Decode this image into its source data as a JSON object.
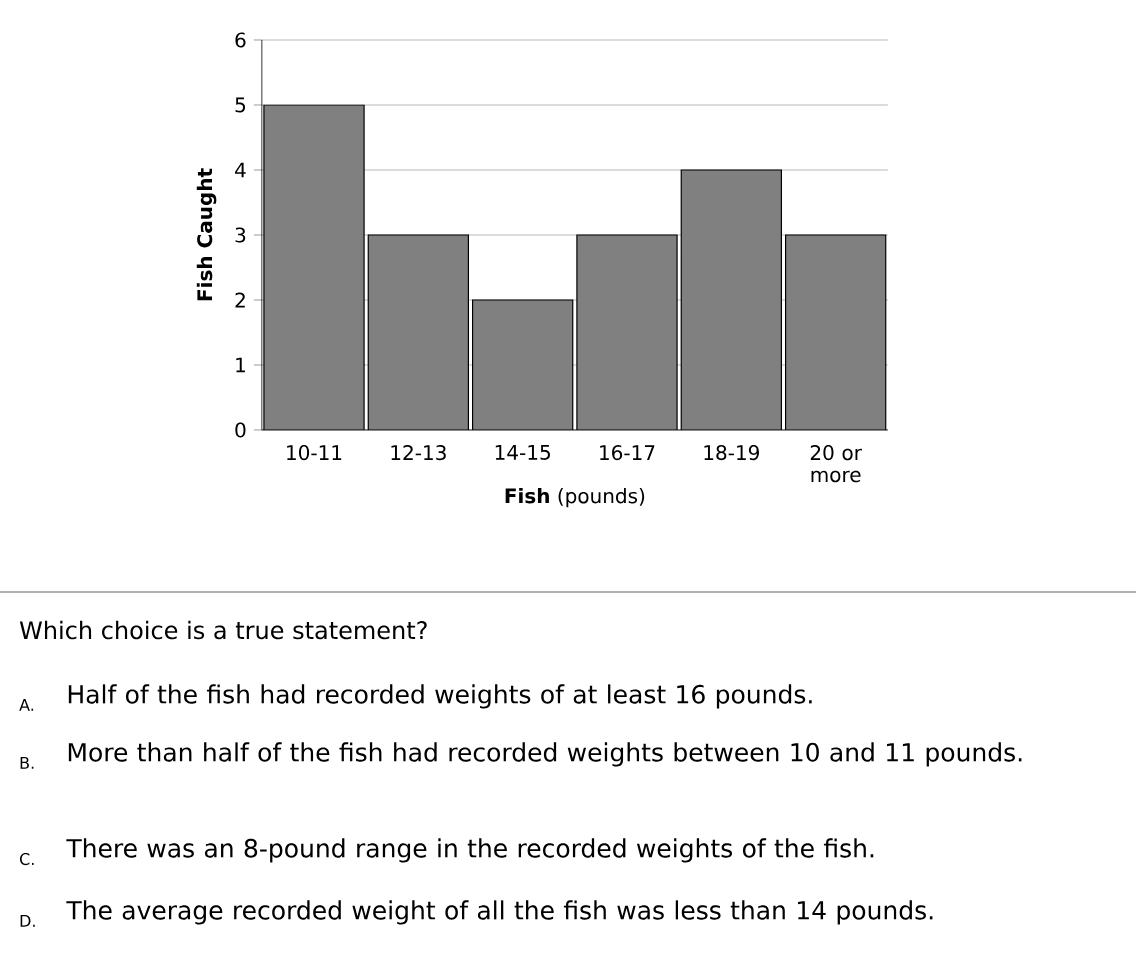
{
  "chart_data": {
    "type": "bar",
    "xlabel": "**Fish** (pounds)",
    "ylabel": "Fish Caught",
    "categories": [
      "10-11",
      "12-13",
      "14-15",
      "16-17",
      "18-19",
      "20 or more"
    ],
    "values": [
      5,
      3,
      2,
      3,
      4,
      3
    ],
    "color": "#808080",
    "ylim": [
      0,
      6
    ],
    "yticks": [
      0,
      1,
      2,
      3,
      4,
      5,
      6
    ],
    "grid": "y",
    "annotations": [
      "Which choice is a true statement?",
      "A.",
      "Half of the fish had recorded weights of at least 16 pounds.",
      "B.",
      "More than half of the fish had recorded weights between 10 and 11 pounds.",
      "C.",
      "There was an 8-pound range in the recorded weights of the fish.",
      "D.",
      "The average recorded weight of all the fish was less than 14 pounds."
    ]
  }
}
